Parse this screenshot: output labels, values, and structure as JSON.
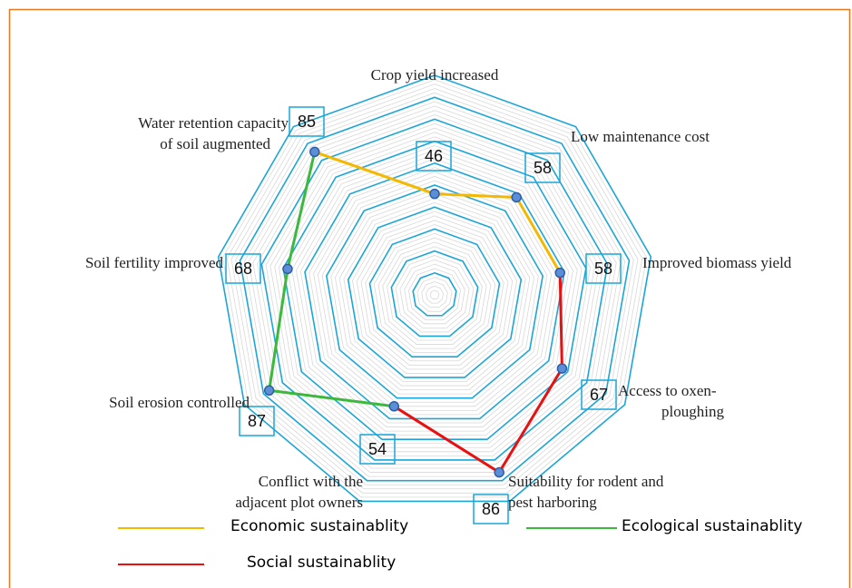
{
  "chart_data": {
    "type": "radar",
    "categories": [
      "Crop yield increased",
      "Low  maintenance cost",
      "Improved biomass yield",
      "Access to oxen-\nploughing",
      "Suitability for rodent and\npest harboring",
      "Conflict with the\nadjacent plot owners",
      "Soil erosion controlled",
      "Soil fertility improved",
      "Water retention capacity\nof soil augmented"
    ],
    "values": [
      46,
      58,
      58,
      67,
      86,
      54,
      87,
      68,
      85
    ],
    "series": [
      {
        "name": "Economic sustainablity",
        "color": "#f5b800",
        "values": [
          46,
          58,
          58,
          null,
          null,
          null,
          null,
          null,
          85
        ]
      },
      {
        "name": "Ecological sustainablity",
        "color": "#3cb83c",
        "values": [
          null,
          null,
          null,
          null,
          null,
          54,
          87,
          68,
          85
        ]
      },
      {
        "name": "Social sustainablity",
        "color": "#e81010",
        "values": [
          null,
          null,
          58,
          67,
          86,
          54,
          null,
          null,
          null
        ]
      }
    ],
    "rlim": [
      0,
      100
    ],
    "rticks": [
      10,
      20,
      30,
      40,
      50,
      60,
      70,
      80,
      90,
      100
    ],
    "grid": true
  }
}
